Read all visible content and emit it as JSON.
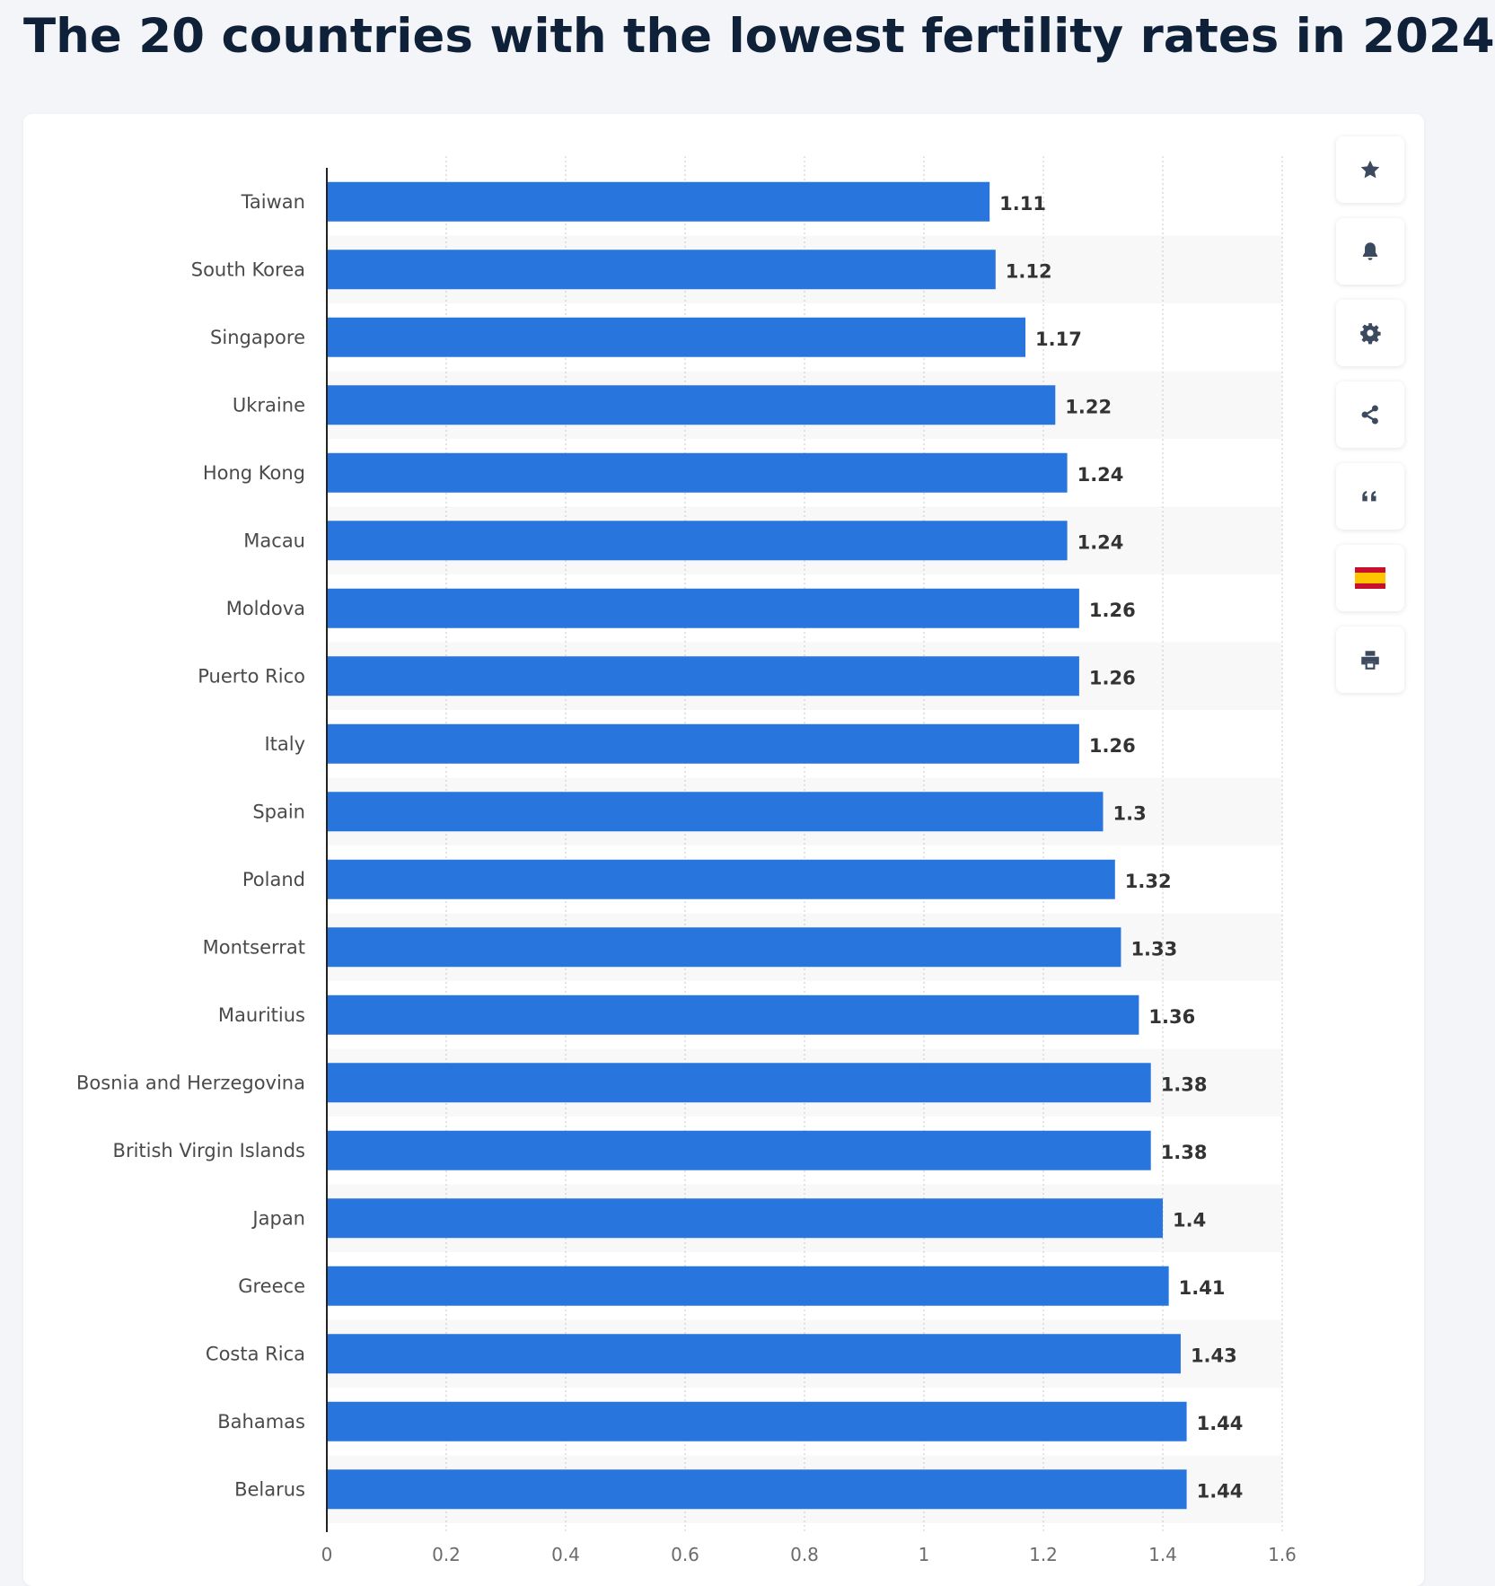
{
  "title": "The 20 countries with the lowest fertility rates in 2024",
  "colors": {
    "bar": "#2876dd",
    "title": "#0f2139",
    "label": "#4a4a4a",
    "value_label": "#333333",
    "tool_icon": "#3b4a5f",
    "band": "#f8f8f8"
  },
  "toolbar": {
    "icons": [
      "star-icon",
      "bell-icon",
      "gear-icon",
      "share-icon",
      "quote-icon",
      "spanish-flag-icon",
      "print-icon"
    ]
  },
  "chart_data": {
    "type": "bar",
    "orientation": "horizontal",
    "title": "",
    "xlabel": "",
    "ylabel": "",
    "xlim": [
      0,
      1.6
    ],
    "ticks": [
      "0",
      "0.2",
      "0.4",
      "0.6",
      "0.8",
      "1",
      "1.2",
      "1.4",
      "1.6"
    ],
    "grid": true,
    "categories": [
      "Taiwan",
      "South Korea",
      "Singapore",
      "Ukraine",
      "Hong Kong",
      "Macau",
      "Moldova",
      "Puerto Rico",
      "Italy",
      "Spain",
      "Poland",
      "Montserrat",
      "Mauritius",
      "Bosnia and Herzegovina",
      "British Virgin Islands",
      "Japan",
      "Greece",
      "Costa Rica",
      "Bahamas",
      "Belarus"
    ],
    "values": [
      1.11,
      1.12,
      1.17,
      1.22,
      1.24,
      1.24,
      1.26,
      1.26,
      1.26,
      1.3,
      1.32,
      1.33,
      1.36,
      1.38,
      1.38,
      1.4,
      1.41,
      1.43,
      1.44,
      1.44
    ],
    "value_labels": [
      "1.11",
      "1.12",
      "1.17",
      "1.22",
      "1.24",
      "1.24",
      "1.26",
      "1.26",
      "1.26",
      "1.3",
      "1.32",
      "1.33",
      "1.36",
      "1.38",
      "1.38",
      "1.4",
      "1.41",
      "1.43",
      "1.44",
      "1.44"
    ]
  }
}
